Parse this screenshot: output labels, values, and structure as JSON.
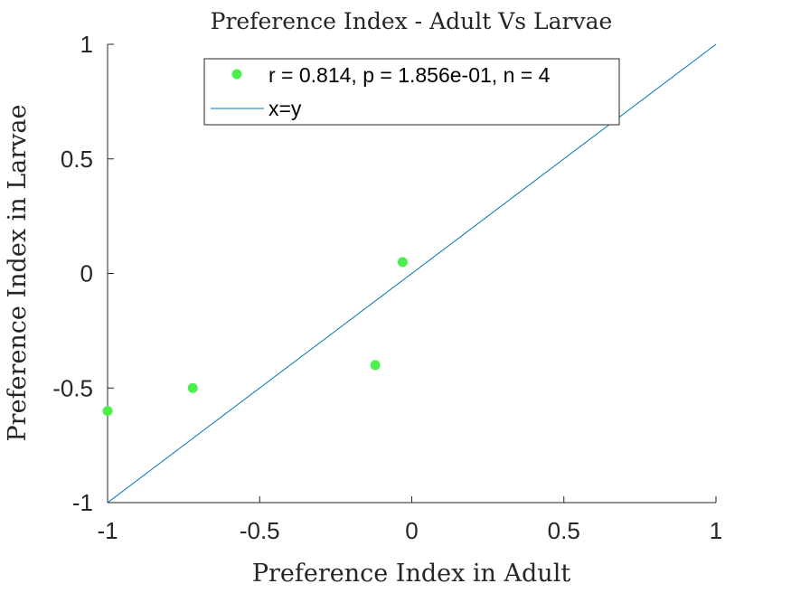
{
  "chart_data": {
    "type": "scatter",
    "title": "Preference Index - Adult Vs Larvae",
    "xlabel": "Preference Index in Adult",
    "ylabel": "Preference Index in Larvae",
    "xlim": [
      -1,
      1
    ],
    "ylim": [
      -1,
      1
    ],
    "xticks": [
      -1,
      -0.5,
      0,
      0.5,
      1
    ],
    "yticks": [
      -1,
      -0.5,
      0,
      0.5,
      1
    ],
    "xtick_labels": [
      "-1",
      "-0.5",
      "0",
      "0.5",
      "1"
    ],
    "ytick_labels": [
      "-1",
      "-0.5",
      "0",
      "0.5",
      "1"
    ],
    "grid": false,
    "legend_position": "top-right",
    "series": [
      {
        "name": "r = 0.814, p = 1.856e-01, n = 4",
        "kind": "scatter",
        "color": "#4cf04c",
        "points": [
          {
            "x": -1.0,
            "y": -0.6
          },
          {
            "x": -0.72,
            "y": -0.5
          },
          {
            "x": -0.12,
            "y": -0.4
          },
          {
            "x": -0.03,
            "y": 0.05
          }
        ]
      },
      {
        "name": "x=y",
        "kind": "line",
        "color": "#0072bd",
        "points": [
          {
            "x": -1,
            "y": -1
          },
          {
            "x": 1,
            "y": 1
          }
        ]
      }
    ]
  }
}
